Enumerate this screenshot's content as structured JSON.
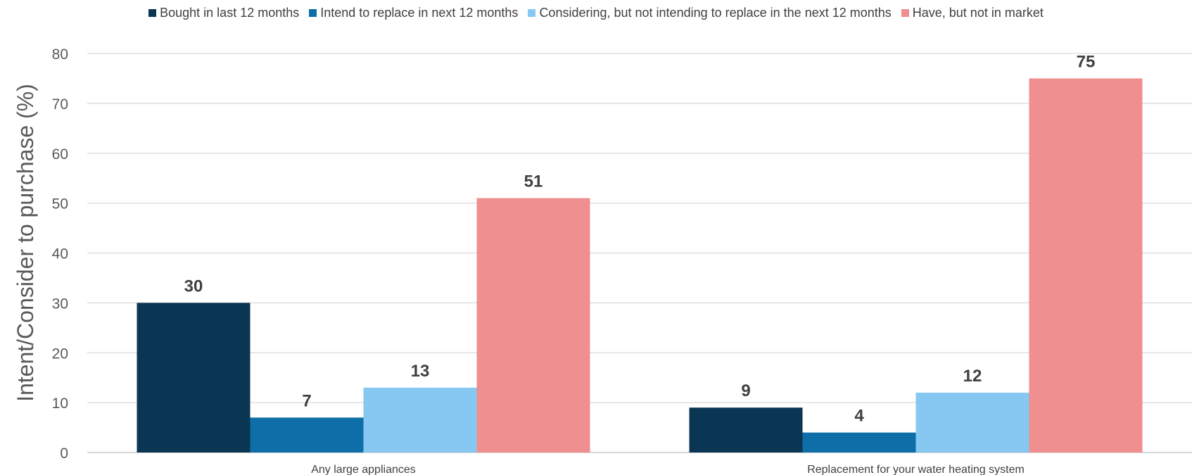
{
  "chart_data": {
    "type": "bar",
    "title": "",
    "xlabel": "",
    "ylabel": "Intent/Consider to purchase (%)",
    "ylim": [
      0,
      80
    ],
    "yticks": [
      0,
      10,
      20,
      30,
      40,
      50,
      60,
      70,
      80
    ],
    "grid": true,
    "legend_position": "top",
    "categories": [
      "Any large appliances",
      "Replacement for your water heating system"
    ],
    "series": [
      {
        "name": "Bought in last 12 months",
        "color": "#0a3653",
        "values": [
          30,
          9
        ]
      },
      {
        "name": "Intend to replace in next 12 months",
        "color": "#0e6ea8",
        "values": [
          7,
          4
        ]
      },
      {
        "name": "Considering, but not intending to replace in the next 12 months",
        "color": "#86c8f2",
        "values": [
          13,
          12
        ]
      },
      {
        "name": "Have, but not in market",
        "color": "#ef8f8f",
        "values": [
          51,
          75
        ]
      }
    ]
  }
}
